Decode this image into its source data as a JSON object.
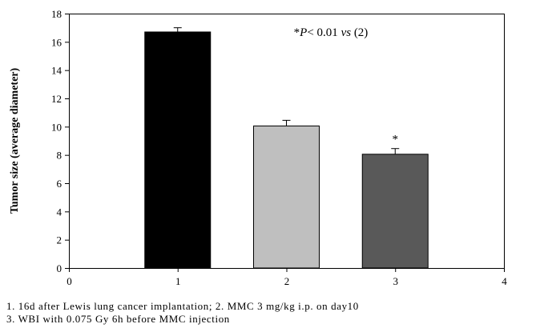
{
  "chart_data": {
    "type": "bar",
    "x": [
      1,
      2,
      3
    ],
    "values": [
      16.7,
      10.05,
      8.05
    ],
    "errors": [
      0.3,
      0.4,
      0.4
    ],
    "colors": [
      "#000000",
      "#bfbfbf",
      "#595959"
    ],
    "ylabel": "Tumor size (average diameter)",
    "xlim": [
      0,
      4
    ],
    "ylim": [
      0,
      18
    ],
    "xticks": [
      "0",
      "1",
      "2",
      "3",
      "4"
    ],
    "yticks": [
      "0",
      "2",
      "4",
      "6",
      "8",
      "10",
      "12",
      "14",
      "16",
      "18"
    ],
    "annotation": {
      "prefix": "*",
      "italic1": "P",
      "middle": "< 0.01 ",
      "italic2": "vs",
      "suffix": " (2)"
    },
    "significance_marks": [
      "",
      "",
      "*"
    ],
    "grid": false
  },
  "caption": {
    "line1": "1. 16d after Lewis lung cancer implantation; 2. MMC 3 mg/kg i.p. on day10",
    "line2": "3. WBI with 0.075 Gy 6h before MMC injection"
  }
}
